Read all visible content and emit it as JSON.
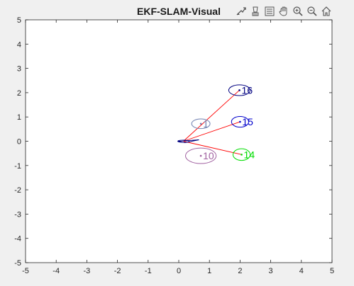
{
  "window": {
    "background": "#f0f0f0"
  },
  "toolbar": {
    "items": [
      {
        "name": "export-icon"
      },
      {
        "name": "brush-icon"
      },
      {
        "name": "datatip-icon"
      },
      {
        "name": "pan-icon"
      },
      {
        "name": "zoom-in-icon"
      },
      {
        "name": "zoom-out-icon"
      },
      {
        "name": "home-icon"
      }
    ]
  },
  "chart_data": {
    "type": "scatter",
    "title": "EKF-SLAM-Visual",
    "xlabel": "",
    "ylabel": "",
    "xlim": [
      -5,
      5
    ],
    "ylim": [
      -5,
      5
    ],
    "xticks": [
      "-5",
      "-4",
      "-3",
      "-2",
      "-1",
      "0",
      "1",
      "2",
      "3",
      "4",
      "5"
    ],
    "yticks": [
      "-5",
      "-4",
      "-3",
      "-2",
      "-1",
      "0",
      "1",
      "2",
      "3",
      "4",
      "5"
    ],
    "grid": false,
    "legend": "none",
    "robot": {
      "x": 0.15,
      "y": 0.0,
      "color": "#000080"
    },
    "observation_color": "#ff0000",
    "landmarks": [
      {
        "label": "16",
        "x": 1.98,
        "y": 2.1,
        "rx": 0.35,
        "ry": 0.22,
        "color": "#000080",
        "observed": true
      },
      {
        "label": "15",
        "x": 2.0,
        "y": 0.8,
        "rx": 0.28,
        "ry": 0.22,
        "color": "#0000cc",
        "observed": true
      },
      {
        "label": "14",
        "x": 2.05,
        "y": -0.55,
        "rx": 0.28,
        "ry": 0.24,
        "color": "#00dd00",
        "observed": true
      },
      {
        "label": "1",
        "x": 0.72,
        "y": 0.72,
        "rx": 0.3,
        "ry": 0.2,
        "color": "#7080b0",
        "observed": false
      },
      {
        "label": "10",
        "x": 0.72,
        "y": -0.6,
        "rx": 0.5,
        "ry": 0.32,
        "color": "#a060a0",
        "observed": false
      }
    ]
  }
}
